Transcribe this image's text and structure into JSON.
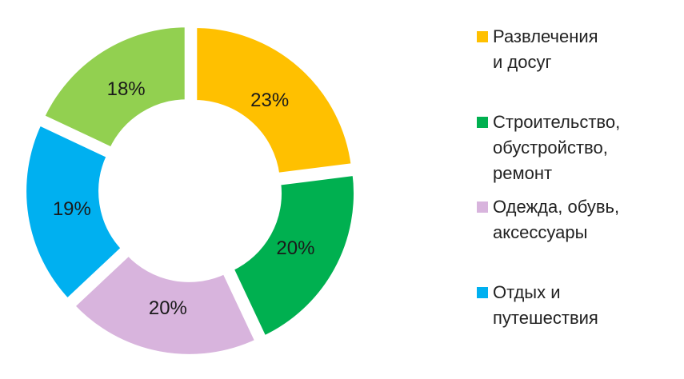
{
  "chart_data": {
    "type": "pie",
    "variant": "donut",
    "categories": [
      "Развлечения и досуг",
      "Строительство, обустройство, ремонт",
      "Одежда, обувь, аксессуары",
      "Отдых и путешествия",
      ""
    ],
    "values": [
      23,
      20,
      20,
      19,
      18
    ],
    "data_labels": [
      "23%",
      "20%",
      "20%",
      "19%",
      "18%"
    ],
    "colors": [
      "#ffc000",
      "#00b050",
      "#d8b4dd",
      "#00b0f0",
      "#92d050"
    ],
    "legend_position": "right",
    "legend": [
      {
        "label": "Развлечения\nи досуг",
        "color": "#ffc000"
      },
      {
        "label": "Строительство,\nобустройство,\nремонт",
        "color": "#00b050"
      },
      {
        "label": "Одежда, обувь,\nаксессуары",
        "color": "#d8b4dd"
      },
      {
        "label": "Отдых и\nпутешествия",
        "color": "#00b0f0"
      }
    ]
  }
}
